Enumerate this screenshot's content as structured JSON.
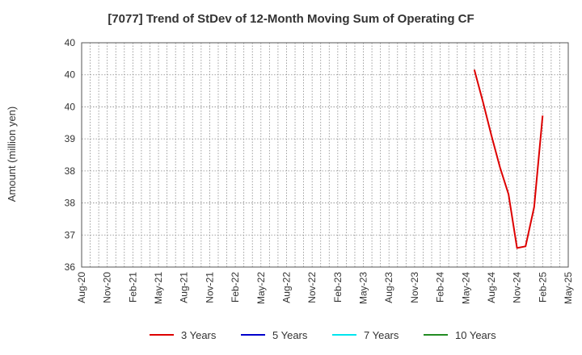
{
  "chart_data": {
    "type": "line",
    "title": "[7077]  Trend of StDev of 12-Month Moving Sum of Operating CF",
    "ylabel": "Amount (million yen)",
    "xlabel": "",
    "x_tick_labels": [
      "Aug-20",
      "Nov-20",
      "Feb-21",
      "May-21",
      "Aug-21",
      "Nov-21",
      "Feb-22",
      "May-22",
      "Aug-22",
      "Nov-22",
      "Feb-23",
      "May-23",
      "Aug-23",
      "Nov-23",
      "Feb-24",
      "May-24",
      "Aug-24",
      "Nov-24",
      "Feb-25",
      "May-25"
    ],
    "y_tick_labels": [
      "36",
      "37",
      "38",
      "38",
      "39",
      "40",
      "40",
      "40"
    ],
    "ylim": [
      36,
      40
    ],
    "grid": true,
    "legend_position": "bottom",
    "series": [
      {
        "name": "3 Years",
        "color": "#dd0000",
        "points": [
          {
            "x": "Jun-24",
            "y": 39.52
          },
          {
            "x": "Jul-24",
            "y": 38.95
          },
          {
            "x": "Aug-24",
            "y": 38.35
          },
          {
            "x": "Sep-24",
            "y": 37.78
          },
          {
            "x": "Oct-24",
            "y": 37.3
          },
          {
            "x": "Nov-24",
            "y": 36.34
          },
          {
            "x": "Dec-24",
            "y": 36.37
          },
          {
            "x": "Jan-25",
            "y": 37.07
          },
          {
            "x": "Feb-25",
            "y": 38.7
          }
        ]
      },
      {
        "name": "5 Years",
        "color": "#0000cc",
        "points": []
      },
      {
        "name": "7 Years",
        "color": "#00e5ee",
        "points": []
      },
      {
        "name": "10 Years",
        "color": "#228b22",
        "points": []
      }
    ]
  }
}
